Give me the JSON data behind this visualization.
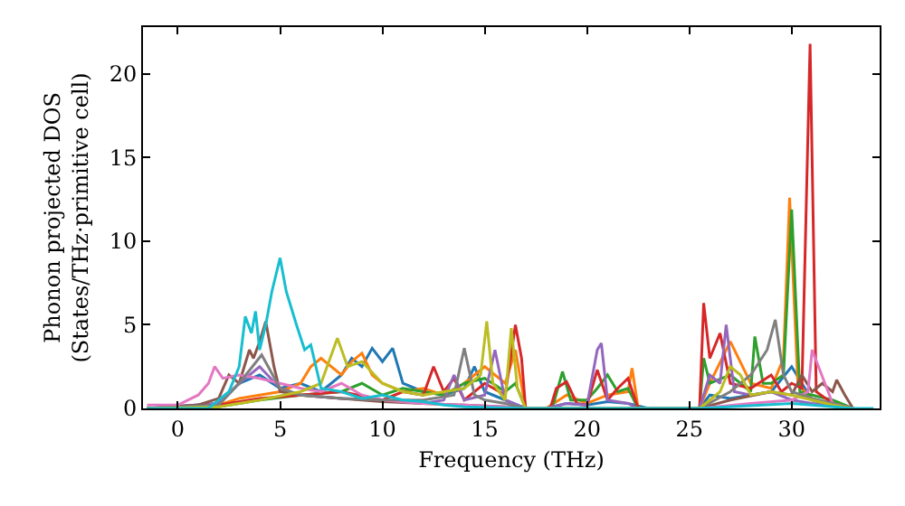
{
  "chart_data": {
    "type": "line",
    "xlabel": "Frequency (THz)",
    "ylabel": "Phonon projected DOS\n(States/THz·primitive cell)",
    "xlim": [
      -1.7,
      34.3
    ],
    "ylim": [
      0,
      22.8
    ],
    "xticks": [
      0,
      5,
      10,
      15,
      20,
      25,
      30
    ],
    "yticks": [
      0,
      5,
      10,
      15,
      20
    ],
    "grid": false,
    "marker": "none",
    "line_style": "solid",
    "series": [
      {
        "color": "#1f77b4",
        "x": [
          -1.5,
          2,
          3,
          4,
          5,
          6,
          7,
          8,
          8.5,
          9,
          9.5,
          10,
          10.5,
          11,
          12,
          13,
          14,
          14.5,
          15,
          16,
          17,
          18,
          19,
          20,
          21,
          22,
          23,
          25.5,
          26,
          27,
          28,
          29,
          30,
          31,
          32,
          33
        ],
        "values": [
          0,
          0.3,
          1.5,
          2,
          1.2,
          1.5,
          1,
          2,
          3,
          2.5,
          3.6,
          2.8,
          3.6,
          1.5,
          1,
          0.8,
          1.2,
          2.5,
          1,
          0.5,
          0,
          0,
          0.3,
          0.2,
          0.4,
          0.3,
          0,
          0,
          0.8,
          0.6,
          0.8,
          1,
          2.5,
          0.5,
          0.2,
          0
        ]
      },
      {
        "color": "#ff7f0e",
        "x": [
          -1.5,
          2,
          3,
          4,
          5,
          6,
          6.5,
          7,
          8,
          8.5,
          9,
          9.5,
          10,
          11,
          12,
          13,
          14,
          15,
          16,
          16.5,
          17,
          18,
          19,
          20,
          21,
          22,
          22.2,
          22.5,
          25.5,
          26,
          27,
          28,
          29,
          29.6,
          29.9,
          30.3,
          31,
          32,
          33
        ],
        "values": [
          0,
          0.2,
          0.6,
          0.8,
          1,
          1.5,
          2.5,
          3,
          2,
          2.8,
          3.3,
          2,
          1.5,
          1,
          1.2,
          0.8,
          1.5,
          2.5,
          1.5,
          3.5,
          0,
          0,
          0.8,
          0.3,
          0.8,
          1,
          2.4,
          0,
          0,
          1.5,
          4,
          1.5,
          1.2,
          3,
          12.6,
          1.5,
          0.5,
          0.2,
          0
        ]
      },
      {
        "color": "#2ca02c",
        "x": [
          -1.5,
          2,
          4,
          6,
          8,
          9,
          10,
          11,
          12,
          13,
          14,
          15,
          16,
          16.5,
          17,
          18.3,
          18.8,
          19.2,
          20,
          20.5,
          21,
          21.5,
          22,
          22.5,
          25.5,
          25.7,
          26,
          27,
          28,
          28.2,
          28.6,
          29,
          29.6,
          30,
          30.4,
          31,
          32,
          33
        ],
        "values": [
          0,
          0.1,
          0.5,
          0.8,
          1,
          1.5,
          0.8,
          1.2,
          1,
          0.8,
          1.5,
          1.8,
          1,
          1.5,
          0,
          0,
          2.2,
          0.5,
          0.5,
          1.2,
          2,
          1,
          1.2,
          0,
          0,
          3,
          1.5,
          2,
          1,
          4.3,
          1.5,
          1.5,
          2,
          11.9,
          1,
          0.8,
          0.5,
          0
        ]
      },
      {
        "color": "#d62728",
        "x": [
          -1.5,
          2,
          4,
          6,
          8,
          10,
          11,
          12,
          12.5,
          13,
          13.5,
          14,
          15,
          16,
          16.5,
          16.8,
          17,
          18.2,
          18.5,
          19,
          19.5,
          20,
          20.5,
          21,
          21.5,
          22,
          22.5,
          25.5,
          25.7,
          26,
          26.5,
          27,
          28,
          29,
          29.5,
          30,
          30.5,
          30.9,
          31.2,
          32,
          33
        ],
        "values": [
          0,
          0.2,
          0.6,
          0.8,
          1,
          0.5,
          1,
          0.8,
          2.5,
          1,
          1.8,
          0.5,
          1.5,
          0.8,
          5,
          3,
          0,
          0,
          1.2,
          1.6,
          0.3,
          0.2,
          2.3,
          0.5,
          1.2,
          1.8,
          0,
          0,
          6.3,
          3,
          4.5,
          1.5,
          1.2,
          2,
          1,
          1.5,
          1.2,
          21.8,
          1,
          0.3,
          0
        ]
      },
      {
        "color": "#9467bd",
        "x": [
          -1.5,
          2,
          3,
          4,
          5,
          6,
          8,
          10,
          12,
          13,
          13.5,
          14,
          15,
          15.5,
          16,
          17,
          18,
          19,
          20,
          20.5,
          20.7,
          21,
          22,
          22.5,
          25.5,
          26,
          26.5,
          26.8,
          27.2,
          28,
          29,
          30,
          31,
          32,
          33
        ],
        "values": [
          0,
          0.3,
          1.5,
          2.5,
          1.2,
          0.8,
          0.6,
          0.5,
          0.3,
          0.5,
          2,
          0.5,
          0.8,
          3.5,
          0.5,
          0,
          0,
          0.3,
          0.2,
          3.5,
          3.9,
          0.5,
          0.3,
          0,
          0,
          2,
          1.5,
          5,
          1,
          0.8,
          1,
          0.5,
          0.3,
          0.2,
          0
        ]
      },
      {
        "color": "#8c564b",
        "x": [
          -1.5,
          1,
          2,
          2.5,
          3,
          3.5,
          3.7,
          4,
          4.3,
          4.7,
          5,
          6,
          8,
          10,
          12,
          14,
          16,
          17,
          25.5,
          27,
          29,
          30,
          30.5,
          31,
          31.5,
          32,
          32.2,
          32.6,
          33
        ],
        "values": [
          0,
          0.2,
          0.6,
          2,
          1.5,
          3.5,
          3,
          4,
          5.2,
          2.5,
          1,
          0.8,
          0.6,
          0.4,
          0.3,
          0.2,
          0.1,
          0,
          0,
          0.5,
          1,
          0.8,
          2,
          1,
          1.5,
          1,
          1.7,
          0.8,
          0
        ]
      },
      {
        "color": "#e377c2",
        "x": [
          -1.5,
          0,
          1,
          1.5,
          1.8,
          2.2,
          3,
          4,
          5,
          6,
          7,
          8,
          9,
          10,
          12,
          14,
          16,
          17,
          25.5,
          28,
          30,
          30.8,
          31,
          32,
          33
        ],
        "values": [
          0.2,
          0.2,
          0.8,
          1.5,
          2.5,
          1.8,
          2,
          1.8,
          1.5,
          1.2,
          1,
          1.5,
          0.8,
          0.5,
          0.3,
          0.2,
          0.1,
          0,
          0,
          0.3,
          0.5,
          1,
          3.5,
          0.3,
          0
        ]
      },
      {
        "color": "#7f7f7f",
        "x": [
          -1.5,
          2,
          3,
          4.1,
          5,
          6,
          8,
          10,
          12,
          13.5,
          14,
          14.5,
          15,
          16,
          17,
          25.5,
          27,
          28,
          28.8,
          29.2,
          29.6,
          30,
          31,
          32,
          33
        ],
        "values": [
          0,
          0.2,
          1.5,
          3.2,
          1.2,
          0.8,
          0.6,
          0.5,
          0.5,
          0.8,
          3.6,
          0.8,
          0.5,
          0.3,
          0,
          0,
          1,
          2,
          3.5,
          5.3,
          2,
          1,
          0.6,
          0.3,
          0
        ]
      },
      {
        "color": "#bcbd22",
        "x": [
          -1.5,
          2,
          4,
          6,
          7,
          7.8,
          8.3,
          9,
          10,
          11,
          12,
          13,
          14,
          14.8,
          15.1,
          15.4,
          16,
          16.3,
          16.6,
          17,
          25.5,
          26.5,
          27,
          27.5,
          28,
          29,
          30,
          31,
          32,
          33
        ],
        "values": [
          0,
          0.1,
          0.5,
          1,
          1.5,
          4.2,
          2.5,
          2.8,
          1.5,
          1,
          0.8,
          1,
          1.2,
          2,
          5.2,
          1.5,
          0.5,
          4.8,
          1.2,
          0,
          0,
          1,
          2.5,
          2,
          0.8,
          1,
          0.8,
          0.5,
          0.2,
          0
        ]
      },
      {
        "color": "#17becf",
        "x": [
          -1.5,
          1.5,
          2.5,
          3,
          3.3,
          3.6,
          3.8,
          4,
          4.3,
          4.6,
          5,
          5.3,
          5.8,
          6.2,
          6.5,
          7,
          8,
          9,
          10,
          11,
          12,
          13,
          14,
          17,
          25.5,
          30,
          31,
          33,
          34
        ],
        "values": [
          0,
          0,
          1,
          2.5,
          5.5,
          4.5,
          5.8,
          3.5,
          5,
          7,
          9,
          7,
          5,
          3.5,
          3.8,
          1.2,
          1,
          0.6,
          0.8,
          0.5,
          0.4,
          0.2,
          0.1,
          0,
          0,
          0.3,
          0.2,
          0,
          0
        ]
      }
    ]
  }
}
